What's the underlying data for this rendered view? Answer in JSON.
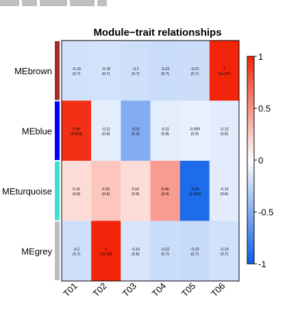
{
  "chart_data": {
    "type": "heatmap",
    "title": "Module−trait relationships",
    "x_categories": [
      "T01",
      "T02",
      "T03",
      "T04",
      "T05",
      "T06"
    ],
    "modules": [
      {
        "name": "MEbrown",
        "color": "#a52a2a"
      },
      {
        "name": "MEblue",
        "color": "#0000ff"
      },
      {
        "name": "MEturquoise",
        "color": "#40e0d0"
      },
      {
        "name": "MEgrey",
        "color": "#bebebe"
      }
    ],
    "correlations": [
      [
        -0.19,
        -0.18,
        -0.2,
        -0.22,
        -0.21,
        1
      ],
      [
        0.95,
        -0.11,
        -0.51,
        -0.11,
        -0.093,
        -0.12
      ],
      [
        0.16,
        0.26,
        0.16,
        0.46,
        -0.92,
        -0.12
      ],
      [
        -0.2,
        1,
        -0.16,
        -0.22,
        -0.23,
        -0.19
      ]
    ],
    "pvalues": [
      [
        "(0.7)",
        "(0.7)",
        "(0.7)",
        "(0.7)",
        "(0.7)",
        "(1e-07)"
      ],
      [
        "(0.004)",
        "(0.8)",
        "(0.3)",
        "(0.8)",
        "(0.9)",
        "(0.8)"
      ],
      [
        "(0.8)",
        "(0.6)",
        "(0.8)",
        "(0.4)",
        "(0.009)",
        "(0.8)"
      ],
      [
        "(0.7)",
        "(1e-08)",
        "(0.8)",
        "(0.7)",
        "(0.7)",
        "(0.7)"
      ]
    ],
    "cell_labels": [
      [
        "-0.19",
        "-0.18",
        "-0.2",
        "-0.22",
        "-0.21",
        "1"
      ],
      [
        "0.95",
        "-0.11",
        "-0.51",
        "-0.11",
        "-0.093",
        "-0.12"
      ],
      [
        "0.16",
        "0.26",
        "0.16",
        "0.46",
        "-0.92",
        "-0.12"
      ],
      [
        "-0.2",
        "1",
        "-0.16",
        "-0.22",
        "-0.23",
        "-0.19"
      ]
    ],
    "color_scale": {
      "min": -1,
      "max": 1,
      "low_color": "#0b5fe8",
      "mid_color": "#ffffff",
      "high_color": "#f2250a",
      "ticks": [
        "-1",
        "-0.5",
        "0",
        "0.5",
        "1"
      ]
    }
  }
}
